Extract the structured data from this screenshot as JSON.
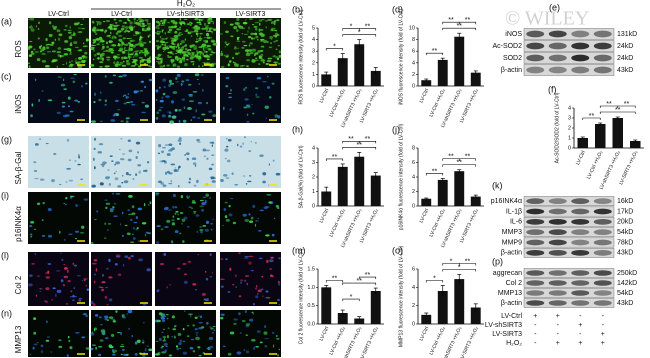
{
  "watermark": "© WILEY",
  "image_grid": {
    "group": "H₂O₂",
    "columns": [
      "LV-Ctrl",
      "LV-Ctrl",
      "LV-shSIRT3",
      "LV-SIRT3"
    ],
    "rows": [
      {
        "letter": "(a)",
        "label": "ROS"
      },
      {
        "letter": "(c)",
        "label": "iNOS"
      },
      {
        "letter": "(g)",
        "label": "SA-β-Gal"
      },
      {
        "letter": "(i)",
        "label": "p16INK4α"
      },
      {
        "letter": "(l)",
        "label": "Col 2"
      },
      {
        "letter": "(n)",
        "label": "MMP13"
      }
    ]
  },
  "chart_data": [
    {
      "letter": "(b)",
      "type": "bar",
      "y_label": "ROS fluorescence intensity (fold of LV-Ctrl)",
      "categories": [
        "LV-Ctrl",
        "LV-Ctrl +H₂O₂",
        "LV-shSIRT3 +H₂O₂",
        "LV-SIRT3 +H₂O₂"
      ],
      "values": [
        1,
        2.4,
        3.6,
        1.3
      ],
      "errors": [
        0.2,
        0.4,
        0.4,
        0.3
      ],
      "color": "#111111",
      "ylim": [
        0,
        5
      ],
      "yticks": [
        0,
        1,
        2,
        3,
        4,
        5
      ],
      "annotations": [
        "*",
        "*",
        "*",
        "**"
      ]
    },
    {
      "letter": "(d)",
      "type": "bar",
      "y_label": "iNOS fluorescence intensity (fold of LV-Ctrl)",
      "categories": [
        "LV-Ctrl",
        "LV-Ctrl +H₂O₂",
        "LV-shSIRT3 +H₂O₂",
        "LV-SIRT3 +H₂O₂"
      ],
      "values": [
        1,
        4.5,
        8.5,
        2.3
      ],
      "errors": [
        0.2,
        0.3,
        0.6,
        0.3
      ],
      "color": "#111111",
      "ylim": [
        0,
        10
      ],
      "yticks": [
        0,
        2,
        4,
        6,
        8,
        10
      ],
      "annotations": [
        "**",
        "**",
        "**",
        "**"
      ]
    },
    {
      "letter": "(f)",
      "type": "bar",
      "y_label": "Ac-SOD2/SOD2 (fold of LV-Ctrl)",
      "categories": [
        "LV-Ctrl",
        "LV-Ctrl +H₂O₂",
        "LV-shSIRT3 +H₂O₂",
        "LV-SIRT3 +H₂O₂"
      ],
      "values": [
        1,
        2.4,
        3,
        0.7
      ],
      "errors": [
        0.1,
        0.1,
        0.1,
        0.1
      ],
      "color": "#111111",
      "ylim": [
        0,
        4
      ],
      "yticks": [
        0,
        1,
        2,
        3,
        4
      ],
      "annotations": [
        "**",
        "**",
        "**",
        "**"
      ]
    },
    {
      "letter": "(h)",
      "type": "bar",
      "y_label": "SA-β-Gal(%) (fold of LV-Ctrl)",
      "categories": [
        "LV-Ctrl",
        "LV-Ctrl +H₂O₂",
        "LV-shSIRT3 +H₂O₂",
        "LV-SIRT3 +H₂O₂"
      ],
      "values": [
        1,
        2.7,
        3.4,
        2.1
      ],
      "errors": [
        0.3,
        0.2,
        0.3,
        0.2
      ],
      "color": "#111111",
      "ylim": [
        0,
        4
      ],
      "yticks": [
        0,
        1,
        2,
        3,
        4
      ],
      "annotations": [
        "**",
        "**",
        "**",
        "**"
      ]
    },
    {
      "letter": "(j)",
      "type": "bar",
      "y_label": "p16INK4α fluorescence intensity (fold of LV-Ctrl)",
      "categories": [
        "LV-Ctrl",
        "LV-Ctrl +H₂O₂",
        "LV-shSIRT3 +H₂O₂",
        "LV-SIRT3 +H₂O₂"
      ],
      "values": [
        1,
        3.6,
        4.8,
        1.3
      ],
      "errors": [
        0.1,
        0.2,
        0.2,
        0.2
      ],
      "color": "#111111",
      "ylim": [
        0,
        8
      ],
      "yticks": [
        0,
        2,
        4,
        6,
        8
      ],
      "annotations": [
        "**",
        "**",
        "**",
        "**"
      ]
    },
    {
      "letter": "(m)",
      "type": "bar",
      "y_label": "Col 2 fluorescence intensity (fold of LV-Ctrl)",
      "categories": [
        "LV-Ctrl",
        "LV-Ctrl +H₂O₂",
        "LV-shSIRT3 +H₂O₂",
        "LV-SIRT3 +H₂O₂"
      ],
      "values": [
        1.0,
        0.3,
        0.15,
        0.9
      ],
      "errors": [
        0.05,
        0.08,
        0.05,
        0.08
      ],
      "color": "#111111",
      "ylim": [
        0,
        1.5
      ],
      "yticks": [
        {
          "value": 0,
          "label": "0.0"
        },
        {
          "value": 0.5,
          "label": "0.5"
        },
        {
          "value": 1,
          "label": "1.0"
        },
        {
          "value": 1.5,
          "label": "1.5"
        }
      ],
      "annotations": [
        "**",
        "*",
        "**",
        "**"
      ]
    },
    {
      "letter": "(o)",
      "type": "bar",
      "y_label": "MMP13 fluorescence intensity (fold of LV-Ctrl)",
      "categories": [
        "LV-Ctrl",
        "LV-Ctrl +H₂O₂",
        "LV-shSIRT3 +H₂O₂",
        "LV-SIRT3 +H₂O₂"
      ],
      "values": [
        1,
        3.6,
        4.9,
        1.8
      ],
      "errors": [
        0.2,
        0.6,
        0.5,
        0.4
      ],
      "color": "#111111",
      "ylim": [
        0,
        6
      ],
      "yticks": [
        0,
        2,
        4,
        6
      ],
      "annotations": [
        "*",
        "*",
        "*",
        "**"
      ]
    }
  ],
  "blots": [
    {
      "letter": "(e)",
      "bands": [
        {
          "protein": "iNOS",
          "size": "131kD"
        },
        {
          "protein": "Ac-SOD2",
          "size": "24kD"
        },
        {
          "protein": "SOD2",
          "size": "24kD"
        },
        {
          "protein": "β-actin",
          "size": "43kD"
        }
      ]
    },
    {
      "letter": "(k)",
      "bands": [
        {
          "protein": "p16INK4α",
          "size": "16kD"
        },
        {
          "protein": "IL-1β",
          "size": "17kD"
        },
        {
          "protein": "IL-6",
          "size": "20kD"
        },
        {
          "protein": "MMP3",
          "size": "54kD"
        },
        {
          "protein": "MMP9",
          "size": "78kD"
        },
        {
          "protein": "β-actin",
          "size": "43kD"
        }
      ]
    },
    {
      "letter": "(p)",
      "bands": [
        {
          "protein": "aggrecan",
          "size": "250kD"
        },
        {
          "protein": "Col 2",
          "size": "142kD"
        },
        {
          "protein": "MMP13",
          "size": "54kD"
        },
        {
          "protein": "β-actin",
          "size": "43kD"
        }
      ],
      "treatments": [
        {
          "label": "LV-Ctrl",
          "marks": [
            "+",
            "+",
            "-",
            "-"
          ]
        },
        {
          "label": "LV-shSIRT3",
          "marks": [
            "-",
            "-",
            "+",
            "-"
          ]
        },
        {
          "label": "LV-SIRT3",
          "marks": [
            "-",
            "-",
            "-",
            "+"
          ]
        },
        {
          "label": "H₂O₂",
          "marks": [
            "-",
            "+",
            "+",
            "+"
          ]
        }
      ]
    }
  ]
}
